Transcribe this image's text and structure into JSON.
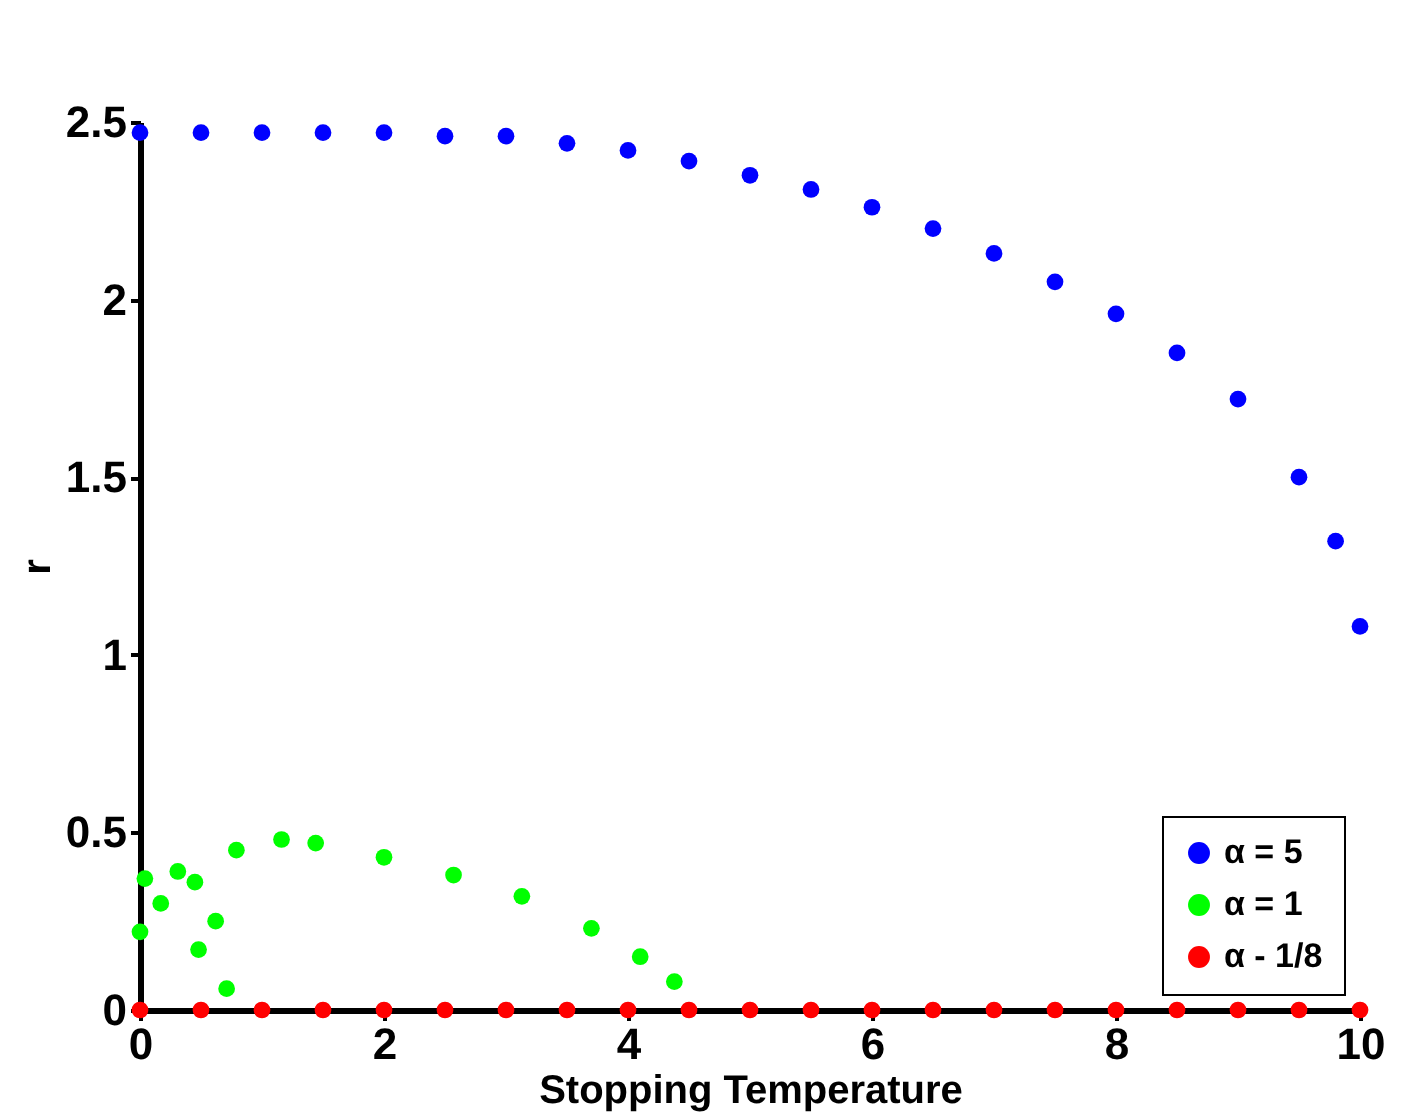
{
  "chart_data": {
    "type": "scatter",
    "xlabel": "Stopping Temperature",
    "ylabel": "r",
    "xlim": [
      0,
      10
    ],
    "xticks": [
      0,
      2,
      4,
      6,
      8,
      10
    ],
    "ylim": [
      0,
      2.5
    ],
    "yticks": [
      0,
      0.5,
      1,
      1.5,
      2,
      2.5
    ],
    "grid": false,
    "legend": "bottom right",
    "marker": "circle",
    "series": [
      {
        "name": "α = 5",
        "color": "#0000ff",
        "x": [
          0,
          0.5,
          1,
          1.5,
          2,
          2.5,
          3,
          3.5,
          4,
          4.5,
          5,
          5.5,
          6,
          6.5,
          7,
          7.5,
          8,
          8.5,
          9,
          9.5,
          9.8,
          10
        ],
        "values": [
          2.47,
          2.47,
          2.47,
          2.47,
          2.47,
          2.46,
          2.46,
          2.44,
          2.42,
          2.39,
          2.35,
          2.31,
          2.26,
          2.2,
          2.13,
          2.05,
          1.96,
          1.85,
          1.72,
          1.5,
          1.32,
          1.08
        ]
      },
      {
        "name": "α = 1",
        "color": "#00ff00",
        "x": [
          0,
          0.04,
          0.17,
          0.31,
          0.45,
          0.48,
          0.62,
          0.71,
          0.79,
          1.16,
          1.44,
          2.0,
          2.57,
          3.13,
          3.7,
          4.1,
          4.38
        ],
        "values": [
          0.22,
          0.37,
          0.3,
          0.39,
          0.36,
          0.17,
          0.25,
          0.06,
          0.45,
          0.48,
          0.47,
          0.43,
          0.38,
          0.32,
          0.23,
          0.15,
          0.08
        ]
      },
      {
        "name": "α - 1/8",
        "color": "#ff0000",
        "x": [
          0,
          0.5,
          1,
          1.5,
          2,
          2.5,
          3,
          3.5,
          4,
          4.5,
          5,
          5.5,
          6,
          6.5,
          7,
          7.5,
          8,
          8.5,
          9,
          9.5,
          10
        ],
        "values": [
          0,
          0,
          0,
          0,
          0,
          0,
          0,
          0,
          0,
          0,
          0,
          0,
          0,
          0,
          0,
          0,
          0,
          0,
          0,
          0,
          0
        ]
      }
    ]
  }
}
